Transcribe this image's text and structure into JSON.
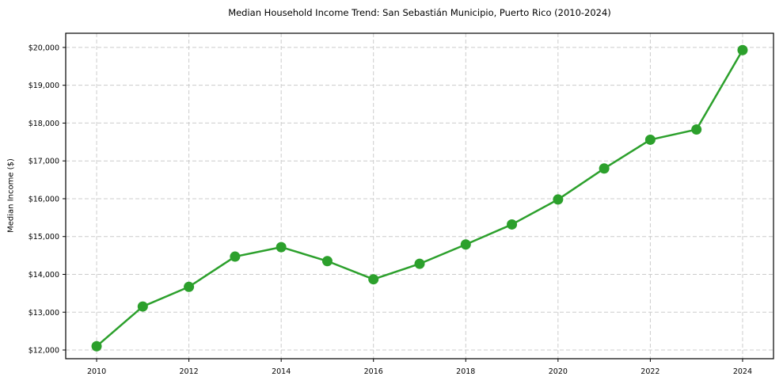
{
  "chart_data": {
    "type": "line",
    "title": "Median Household Income Trend: San Sebastián Municipio, Puerto Rico (2010-2024)",
    "xlabel": "",
    "ylabel": "Median Income ($)",
    "series": [
      {
        "name": "Median Household Income",
        "x": [
          2010,
          2011,
          2012,
          2013,
          2014,
          2015,
          2016,
          2017,
          2018,
          2019,
          2020,
          2021,
          2022,
          2023,
          2024
        ],
        "values": [
          12100,
          13150,
          13670,
          14470,
          14720,
          14350,
          13870,
          14280,
          14790,
          15320,
          15980,
          16800,
          17560,
          17830,
          19930
        ]
      }
    ],
    "xticks": [
      2010,
      2012,
      2014,
      2016,
      2018,
      2020,
      2022,
      2024
    ],
    "xtick_labels": [
      "2010",
      "2012",
      "2014",
      "2016",
      "2018",
      "2020",
      "2022",
      "2024"
    ],
    "yticks": [
      12000,
      13000,
      14000,
      15000,
      16000,
      17000,
      18000,
      19000,
      20000
    ],
    "ytick_labels": [
      "$12,000",
      "$13,000",
      "$14,000",
      "$15,000",
      "$16,000",
      "$17,000",
      "$18,000",
      "$19,000",
      "$20,000"
    ],
    "xlim": [
      2009.33,
      2024.67
    ],
    "ylim": [
      11770,
      20375
    ],
    "grid": true,
    "legend": false,
    "colors": {
      "line": "#2ca02c",
      "marker": "#2ca02c",
      "grid": "#cccccc",
      "spine": "#000000",
      "background": "#ffffff",
      "text": "#000000"
    },
    "marker_style": "circle",
    "line_style": "solid",
    "grid_style": "dashed"
  }
}
